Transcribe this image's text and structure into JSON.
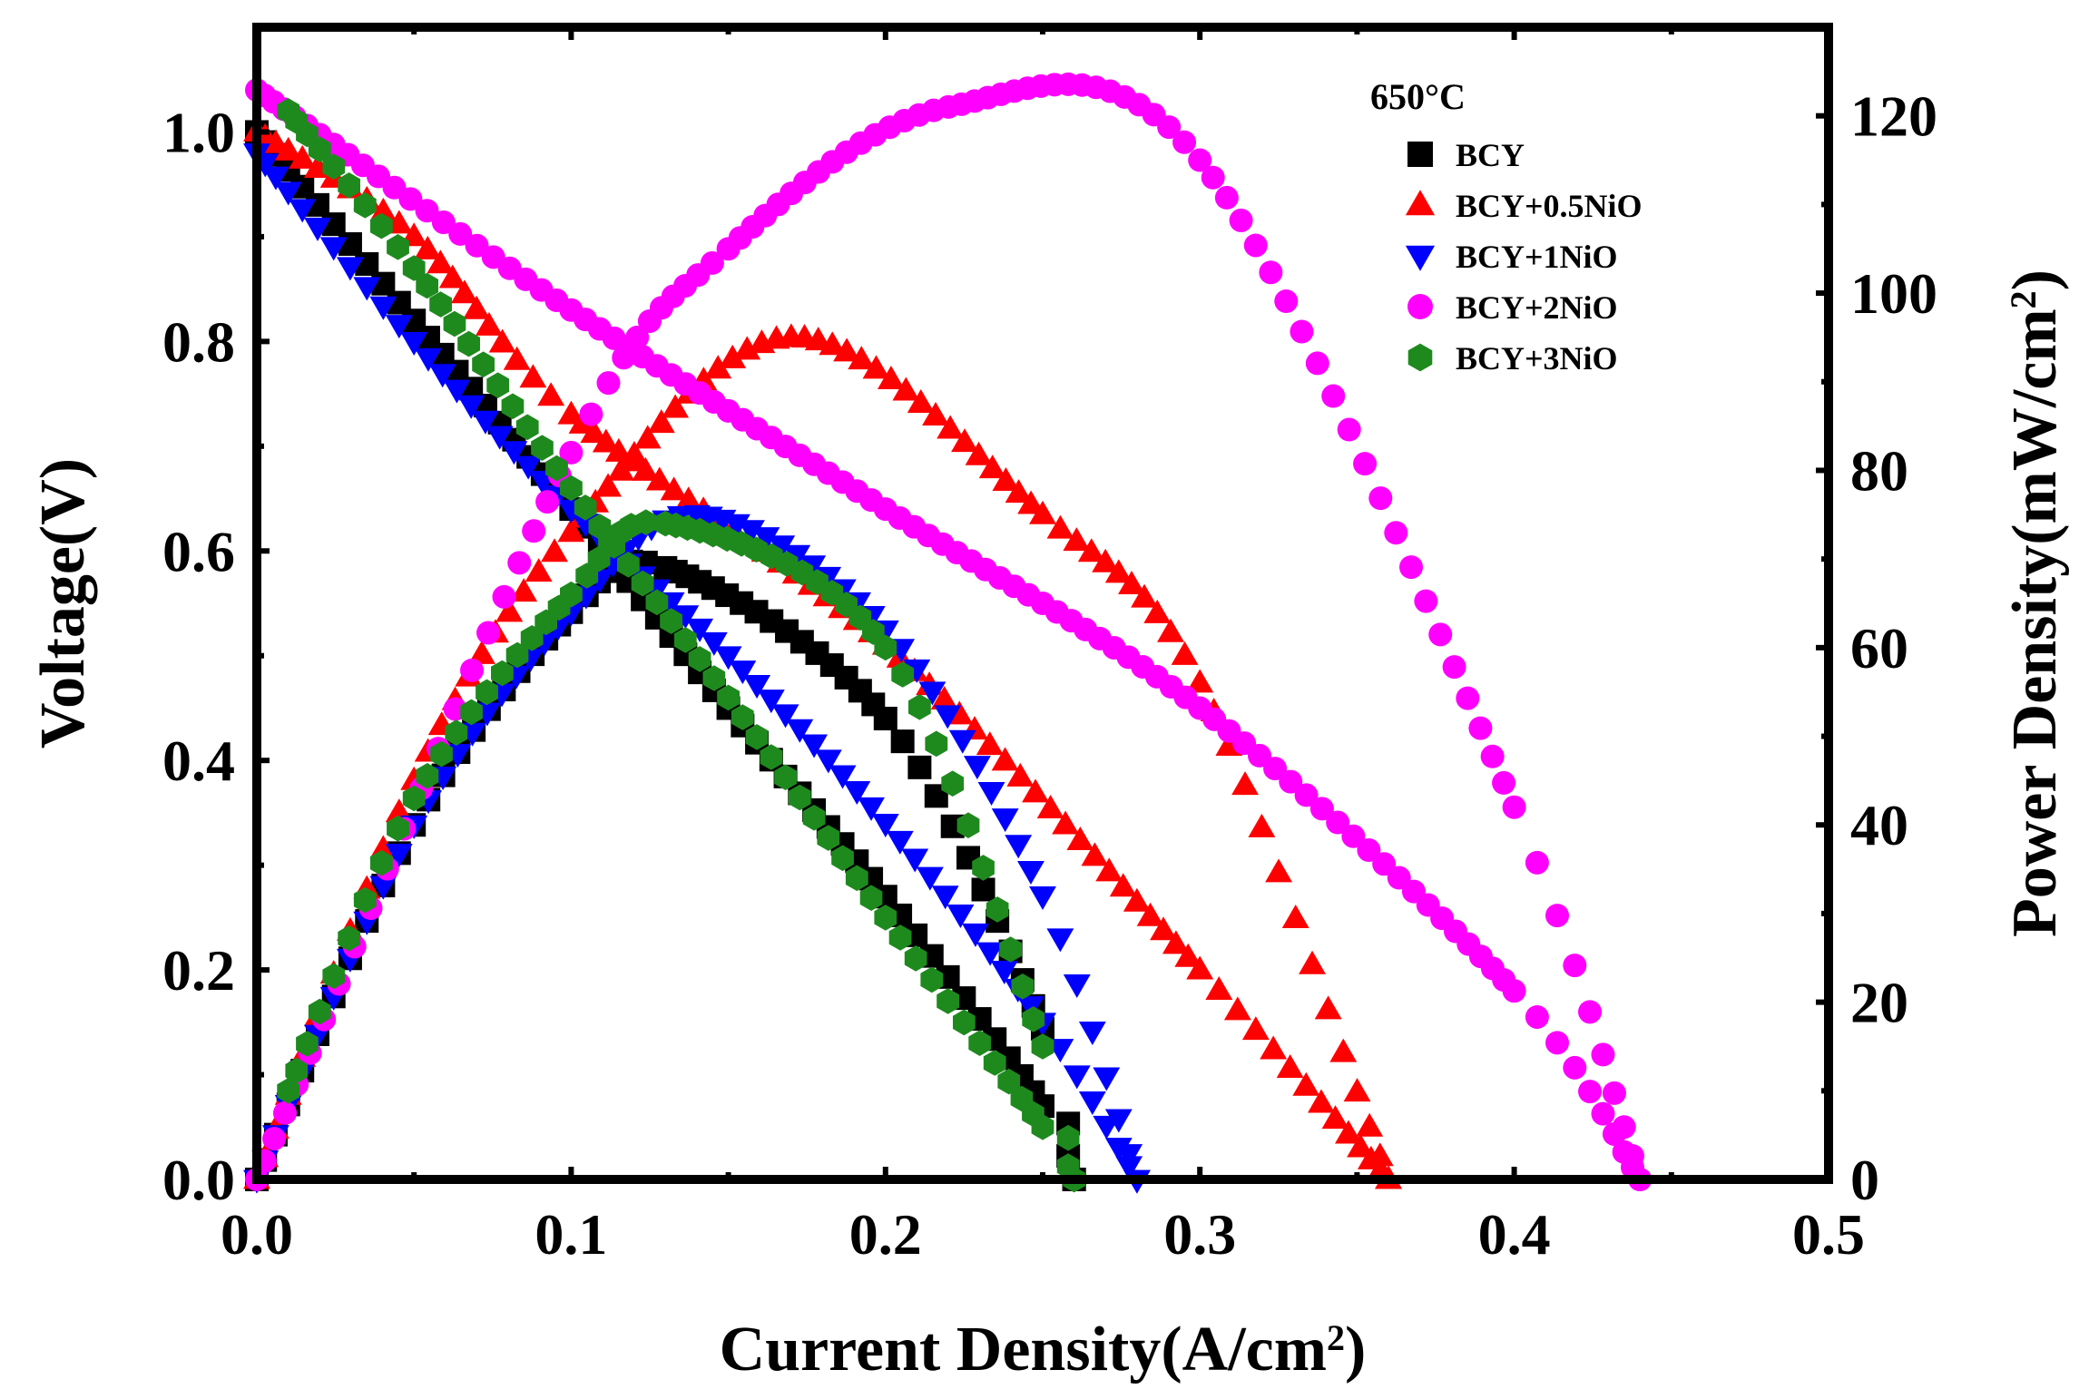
{
  "chart_data": {
    "type": "line",
    "title": "",
    "xlabel": "Current Density(A/cm",
    "xlabel_sup": "2",
    "xlabel_end": ")",
    "ylabel": "Voltage(V)",
    "y2label": "Power Density(mW/cm",
    "y2label_sup": "2",
    "y2label_end": ")",
    "xlim": [
      0,
      0.5
    ],
    "ylim": [
      0,
      1.1
    ],
    "y2lim": [
      0,
      130
    ],
    "x_ticks": [
      "0.0",
      "0.1",
      "0.2",
      "0.3",
      "0.4",
      "0.5"
    ],
    "y_ticks": [
      "0.0",
      "0.2",
      "0.4",
      "0.6",
      "0.8",
      "1.0"
    ],
    "y2_ticks": [
      "0",
      "20",
      "40",
      "60",
      "80",
      "100",
      "120"
    ],
    "legend_title": "650°C",
    "legend_position": "top-right",
    "grid": false,
    "series": [
      {
        "name": "BCY",
        "color": "#000000",
        "marker": "square",
        "voltage": {
          "x": [
            0,
            0.05,
            0.1,
            0.15,
            0.2,
            0.25,
            0.26
          ],
          "y": [
            1.0,
            0.82,
            0.64,
            0.45,
            0.27,
            0.07,
            0.0
          ]
        },
        "power": {
          "x": [
            0,
            0.05,
            0.1,
            0.13,
            0.2,
            0.25,
            0.26
          ],
          "y": [
            0,
            40,
            64,
            69,
            52,
            17,
            0
          ]
        }
      },
      {
        "name": "BCY+0.5NiO",
        "color": "#ff0000",
        "marker": "triangle-up",
        "voltage": {
          "x": [
            0,
            0.05,
            0.1,
            0.2,
            0.3,
            0.36
          ],
          "y": [
            1.0,
            0.9,
            0.73,
            0.51,
            0.2,
            0.0
          ]
        },
        "power": {
          "x": [
            0,
            0.05,
            0.1,
            0.17,
            0.25,
            0.3,
            0.36
          ],
          "y": [
            0,
            45,
            73,
            95,
            75,
            56,
            0
          ]
        }
      },
      {
        "name": "BCY+1NiO",
        "color": "#0000ff",
        "marker": "triangle-down",
        "voltage": {
          "x": [
            0,
            0.05,
            0.1,
            0.15,
            0.2,
            0.25,
            0.28
          ],
          "y": [
            0.98,
            0.8,
            0.64,
            0.5,
            0.34,
            0.15,
            0.0
          ]
        },
        "power": {
          "x": [
            0,
            0.05,
            0.1,
            0.14,
            0.2,
            0.25,
            0.28
          ],
          "y": [
            0,
            40,
            64,
            75,
            62,
            32,
            0
          ]
        }
      },
      {
        "name": "BCY+2NiO",
        "color": "#ff00ff",
        "marker": "circle",
        "voltage": {
          "x": [
            0,
            0.1,
            0.2,
            0.3,
            0.4,
            0.44
          ],
          "y": [
            1.04,
            0.83,
            0.64,
            0.45,
            0.18,
            0.0
          ]
        },
        "power": {
          "x": [
            0,
            0.1,
            0.15,
            0.22,
            0.3,
            0.4,
            0.44
          ],
          "y": [
            0,
            82,
            105,
            121,
            115,
            42,
            0
          ]
        }
      },
      {
        "name": "BCY+3NiO",
        "color": "#1e8a1e",
        "marker": "hexagon",
        "voltage": {
          "x": [
            0.01,
            0.05,
            0.1,
            0.15,
            0.2,
            0.25,
            0.26
          ],
          "y": [
            1.02,
            0.87,
            0.66,
            0.46,
            0.25,
            0.05,
            0.0
          ]
        },
        "power": {
          "x": [
            0.01,
            0.05,
            0.1,
            0.13,
            0.2,
            0.25,
            0.26
          ],
          "y": [
            10,
            43,
            66,
            74,
            60,
            15,
            0
          ]
        }
      }
    ]
  }
}
